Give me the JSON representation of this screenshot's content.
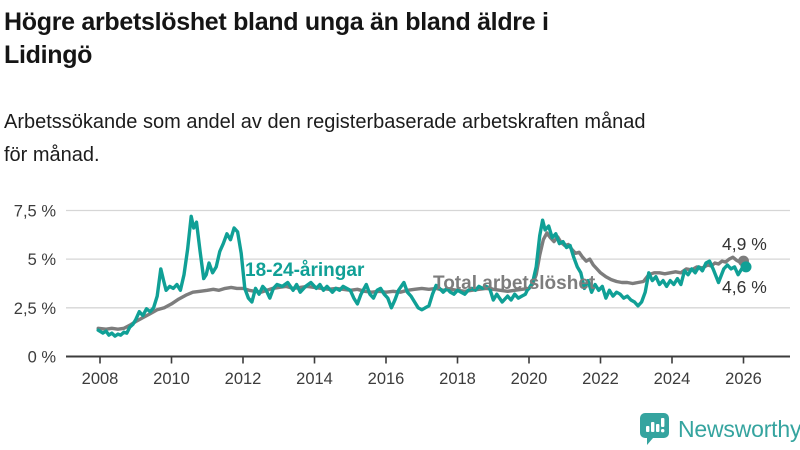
{
  "chart_data": {
    "type": "line",
    "title_lines": [
      "Högre arbetslöshet bland unga än bland äldre i",
      "Lidingö"
    ],
    "subtitle_lines": [
      "Arbetssökande som andel av den registerbaserade arbetskraften månad",
      "för månad."
    ],
    "x_axis": {
      "tick_values": [
        2008,
        2010,
        2012,
        2014,
        2016,
        2018,
        2020,
        2022,
        2024,
        2026
      ],
      "tick_labels": [
        "2008",
        "2010",
        "2012",
        "2014",
        "2016",
        "2018",
        "2020",
        "2022",
        "2024",
        "2026"
      ],
      "range": [
        2007.9,
        2027.3
      ]
    },
    "y_axis": {
      "tick_values": [
        7.5,
        5,
        2.5,
        0
      ],
      "tick_labels": [
        "7,5 %",
        "5 %",
        "2,5 %",
        "0 %"
      ],
      "unit": "%",
      "range": [
        0,
        7.8
      ],
      "gridlines": true
    },
    "legend_position": "inline-labels-on-lines",
    "series": [
      {
        "name": "Total arbetslöshet",
        "color": "#7d7d7d",
        "end_value": 4.9,
        "end_label": "4,9 %",
        "points": [
          [
            2007.95,
            1.45
          ],
          [
            2008.17,
            1.4
          ],
          [
            2008.33,
            1.45
          ],
          [
            2008.5,
            1.4
          ],
          [
            2008.67,
            1.45
          ],
          [
            2008.83,
            1.6
          ],
          [
            2009.0,
            1.8
          ],
          [
            2009.2,
            2.0
          ],
          [
            2009.4,
            2.2
          ],
          [
            2009.6,
            2.4
          ],
          [
            2009.8,
            2.5
          ],
          [
            2010.0,
            2.7
          ],
          [
            2010.2,
            2.95
          ],
          [
            2010.4,
            3.15
          ],
          [
            2010.6,
            3.3
          ],
          [
            2010.8,
            3.35
          ],
          [
            2011.0,
            3.4
          ],
          [
            2011.17,
            3.45
          ],
          [
            2011.33,
            3.4
          ],
          [
            2011.5,
            3.5
          ],
          [
            2011.67,
            3.55
          ],
          [
            2011.83,
            3.5
          ],
          [
            2012.0,
            3.5
          ],
          [
            2012.17,
            3.4
          ],
          [
            2012.33,
            3.35
          ],
          [
            2012.5,
            3.3
          ],
          [
            2012.67,
            3.4
          ],
          [
            2012.83,
            3.5
          ],
          [
            2013.0,
            3.55
          ],
          [
            2013.2,
            3.6
          ],
          [
            2013.4,
            3.5
          ],
          [
            2013.6,
            3.55
          ],
          [
            2013.8,
            3.6
          ],
          [
            2014.0,
            3.55
          ],
          [
            2014.2,
            3.5
          ],
          [
            2014.4,
            3.45
          ],
          [
            2014.6,
            3.5
          ],
          [
            2014.8,
            3.45
          ],
          [
            2015.0,
            3.4
          ],
          [
            2015.2,
            3.45
          ],
          [
            2015.4,
            3.35
          ],
          [
            2015.6,
            3.3
          ],
          [
            2015.8,
            3.35
          ],
          [
            2016.0,
            3.3
          ],
          [
            2016.2,
            3.35
          ],
          [
            2016.4,
            3.3
          ],
          [
            2016.6,
            3.4
          ],
          [
            2016.8,
            3.45
          ],
          [
            2017.0,
            3.5
          ],
          [
            2017.2,
            3.45
          ],
          [
            2017.4,
            3.5
          ],
          [
            2017.6,
            3.4
          ],
          [
            2017.8,
            3.45
          ],
          [
            2018.0,
            3.4
          ],
          [
            2018.2,
            3.35
          ],
          [
            2018.4,
            3.4
          ],
          [
            2018.6,
            3.45
          ],
          [
            2018.8,
            3.5
          ],
          [
            2019.0,
            3.45
          ],
          [
            2019.2,
            3.4
          ],
          [
            2019.4,
            3.35
          ],
          [
            2019.6,
            3.4
          ],
          [
            2019.8,
            3.45
          ],
          [
            2020.0,
            3.5
          ],
          [
            2020.1,
            3.7
          ],
          [
            2020.2,
            4.2
          ],
          [
            2020.3,
            5.2
          ],
          [
            2020.4,
            6.0
          ],
          [
            2020.5,
            6.35
          ],
          [
            2020.6,
            6.1
          ],
          [
            2020.7,
            5.9
          ],
          [
            2020.8,
            6.15
          ],
          [
            2020.9,
            5.85
          ],
          [
            2021.0,
            5.7
          ],
          [
            2021.1,
            5.75
          ],
          [
            2021.2,
            5.5
          ],
          [
            2021.3,
            5.3
          ],
          [
            2021.4,
            5.35
          ],
          [
            2021.5,
            5.1
          ],
          [
            2021.6,
            4.9
          ],
          [
            2021.7,
            5.0
          ],
          [
            2021.8,
            4.7
          ],
          [
            2021.9,
            4.5
          ],
          [
            2022.0,
            4.3
          ],
          [
            2022.15,
            4.1
          ],
          [
            2022.3,
            3.95
          ],
          [
            2022.45,
            3.85
          ],
          [
            2022.6,
            3.8
          ],
          [
            2022.75,
            3.8
          ],
          [
            2022.9,
            3.75
          ],
          [
            2023.05,
            3.8
          ],
          [
            2023.2,
            3.85
          ],
          [
            2023.35,
            4.2
          ],
          [
            2023.5,
            4.3
          ],
          [
            2023.65,
            4.3
          ],
          [
            2023.8,
            4.25
          ],
          [
            2023.95,
            4.3
          ],
          [
            2024.1,
            4.35
          ],
          [
            2024.25,
            4.3
          ],
          [
            2024.4,
            4.5
          ],
          [
            2024.55,
            4.45
          ],
          [
            2024.7,
            4.6
          ],
          [
            2024.85,
            4.55
          ],
          [
            2025.0,
            4.7
          ],
          [
            2025.1,
            4.65
          ],
          [
            2025.2,
            4.8
          ],
          [
            2025.3,
            4.75
          ],
          [
            2025.4,
            4.9
          ],
          [
            2025.5,
            4.85
          ],
          [
            2025.6,
            5.0
          ],
          [
            2025.7,
            5.1
          ],
          [
            2025.8,
            4.95
          ],
          [
            2025.9,
            4.85
          ],
          [
            2026.0,
            4.9
          ]
        ]
      },
      {
        "name": "18-24-åringar",
        "color": "#10a096",
        "end_value": 4.6,
        "end_label": "4,6 %",
        "points": [
          [
            2007.95,
            1.35
          ],
          [
            2008.08,
            1.2
          ],
          [
            2008.17,
            1.3
          ],
          [
            2008.25,
            1.1
          ],
          [
            2008.33,
            1.2
          ],
          [
            2008.42,
            1.05
          ],
          [
            2008.5,
            1.15
          ],
          [
            2008.58,
            1.1
          ],
          [
            2008.67,
            1.25
          ],
          [
            2008.75,
            1.2
          ],
          [
            2008.83,
            1.5
          ],
          [
            2008.92,
            1.65
          ],
          [
            2009.0,
            1.9
          ],
          [
            2009.1,
            2.3
          ],
          [
            2009.2,
            2.1
          ],
          [
            2009.3,
            2.45
          ],
          [
            2009.4,
            2.3
          ],
          [
            2009.5,
            2.5
          ],
          [
            2009.6,
            3.1
          ],
          [
            2009.7,
            4.5
          ],
          [
            2009.78,
            3.9
          ],
          [
            2009.85,
            3.4
          ],
          [
            2009.95,
            3.6
          ],
          [
            2010.05,
            3.5
          ],
          [
            2010.15,
            3.7
          ],
          [
            2010.25,
            3.4
          ],
          [
            2010.35,
            4.2
          ],
          [
            2010.45,
            5.5
          ],
          [
            2010.55,
            7.2
          ],
          [
            2010.62,
            6.6
          ],
          [
            2010.7,
            6.9
          ],
          [
            2010.8,
            5.4
          ],
          [
            2010.9,
            4.0
          ],
          [
            2010.97,
            4.2
          ],
          [
            2011.05,
            4.8
          ],
          [
            2011.15,
            4.3
          ],
          [
            2011.25,
            4.6
          ],
          [
            2011.35,
            5.4
          ],
          [
            2011.45,
            5.8
          ],
          [
            2011.55,
            6.3
          ],
          [
            2011.65,
            6.0
          ],
          [
            2011.75,
            6.6
          ],
          [
            2011.85,
            6.4
          ],
          [
            2011.95,
            5.3
          ],
          [
            2012.05,
            3.5
          ],
          [
            2012.15,
            3.0
          ],
          [
            2012.25,
            2.8
          ],
          [
            2012.35,
            3.5
          ],
          [
            2012.45,
            3.2
          ],
          [
            2012.55,
            3.6
          ],
          [
            2012.65,
            3.4
          ],
          [
            2012.75,
            3.0
          ],
          [
            2012.85,
            3.5
          ],
          [
            2012.95,
            3.7
          ],
          [
            2013.1,
            3.6
          ],
          [
            2013.25,
            3.8
          ],
          [
            2013.4,
            3.4
          ],
          [
            2013.5,
            3.7
          ],
          [
            2013.6,
            3.3
          ],
          [
            2013.75,
            3.6
          ],
          [
            2013.9,
            3.8
          ],
          [
            2014.05,
            3.5
          ],
          [
            2014.15,
            3.7
          ],
          [
            2014.25,
            3.4
          ],
          [
            2014.35,
            3.6
          ],
          [
            2014.5,
            3.3
          ],
          [
            2014.6,
            3.5
          ],
          [
            2014.7,
            3.4
          ],
          [
            2014.8,
            3.6
          ],
          [
            2014.9,
            3.5
          ],
          [
            2015.0,
            3.4
          ],
          [
            2015.1,
            3.0
          ],
          [
            2015.2,
            2.7
          ],
          [
            2015.3,
            3.2
          ],
          [
            2015.45,
            3.7
          ],
          [
            2015.55,
            3.2
          ],
          [
            2015.65,
            3.0
          ],
          [
            2015.75,
            3.4
          ],
          [
            2015.85,
            3.5
          ],
          [
            2015.95,
            3.2
          ],
          [
            2016.05,
            3.0
          ],
          [
            2016.15,
            2.5
          ],
          [
            2016.25,
            2.9
          ],
          [
            2016.35,
            3.4
          ],
          [
            2016.5,
            3.8
          ],
          [
            2016.6,
            3.3
          ],
          [
            2016.7,
            3.1
          ],
          [
            2016.8,
            2.8
          ],
          [
            2016.9,
            2.5
          ],
          [
            2017.0,
            2.4
          ],
          [
            2017.1,
            2.5
          ],
          [
            2017.2,
            2.6
          ],
          [
            2017.3,
            3.2
          ],
          [
            2017.4,
            3.65
          ],
          [
            2017.5,
            3.5
          ],
          [
            2017.6,
            3.3
          ],
          [
            2017.7,
            3.5
          ],
          [
            2017.8,
            3.3
          ],
          [
            2017.9,
            3.2
          ],
          [
            2018.0,
            3.4
          ],
          [
            2018.1,
            3.3
          ],
          [
            2018.2,
            3.2
          ],
          [
            2018.3,
            3.4
          ],
          [
            2018.4,
            3.5
          ],
          [
            2018.5,
            3.4
          ],
          [
            2018.6,
            3.6
          ],
          [
            2018.7,
            3.5
          ],
          [
            2018.8,
            3.6
          ],
          [
            2018.9,
            3.5
          ],
          [
            2019.0,
            2.9
          ],
          [
            2019.1,
            3.2
          ],
          [
            2019.25,
            2.8
          ],
          [
            2019.4,
            3.1
          ],
          [
            2019.5,
            2.9
          ],
          [
            2019.6,
            3.2
          ],
          [
            2019.7,
            3.0
          ],
          [
            2019.8,
            3.1
          ],
          [
            2019.9,
            3.2
          ],
          [
            2019.95,
            3.4
          ],
          [
            2020.0,
            3.5
          ],
          [
            2020.1,
            3.8
          ],
          [
            2020.2,
            4.6
          ],
          [
            2020.3,
            6.2
          ],
          [
            2020.38,
            7.0
          ],
          [
            2020.45,
            6.5
          ],
          [
            2020.55,
            6.7
          ],
          [
            2020.65,
            6.1
          ],
          [
            2020.75,
            6.3
          ],
          [
            2020.85,
            5.8
          ],
          [
            2020.95,
            5.9
          ],
          [
            2021.05,
            5.6
          ],
          [
            2021.15,
            5.7
          ],
          [
            2021.25,
            5.1
          ],
          [
            2021.35,
            4.6
          ],
          [
            2021.45,
            4.3
          ],
          [
            2021.55,
            3.5
          ],
          [
            2021.65,
            3.9
          ],
          [
            2021.75,
            3.3
          ],
          [
            2021.85,
            3.7
          ],
          [
            2021.95,
            3.4
          ],
          [
            2022.05,
            3.6
          ],
          [
            2022.15,
            3.0
          ],
          [
            2022.25,
            3.4
          ],
          [
            2022.35,
            3.1
          ],
          [
            2022.45,
            3.3
          ],
          [
            2022.55,
            3.2
          ],
          [
            2022.65,
            3.0
          ],
          [
            2022.75,
            3.1
          ],
          [
            2022.85,
            2.9
          ],
          [
            2022.95,
            2.8
          ],
          [
            2023.05,
            2.6
          ],
          [
            2023.15,
            2.8
          ],
          [
            2023.25,
            3.3
          ],
          [
            2023.35,
            4.3
          ],
          [
            2023.45,
            3.9
          ],
          [
            2023.55,
            4.1
          ],
          [
            2023.65,
            3.7
          ],
          [
            2023.75,
            3.9
          ],
          [
            2023.85,
            3.6
          ],
          [
            2023.95,
            3.9
          ],
          [
            2024.05,
            3.7
          ],
          [
            2024.15,
            4.0
          ],
          [
            2024.25,
            3.7
          ],
          [
            2024.35,
            4.4
          ],
          [
            2024.45,
            4.2
          ],
          [
            2024.55,
            4.5
          ],
          [
            2024.65,
            4.3
          ],
          [
            2024.75,
            4.6
          ],
          [
            2024.85,
            4.4
          ],
          [
            2024.95,
            4.8
          ],
          [
            2025.05,
            4.9
          ],
          [
            2025.15,
            4.5
          ],
          [
            2025.3,
            3.8
          ],
          [
            2025.45,
            4.5
          ],
          [
            2025.55,
            4.7
          ],
          [
            2025.65,
            4.5
          ],
          [
            2025.75,
            4.6
          ],
          [
            2025.85,
            4.2
          ],
          [
            2025.95,
            4.5
          ],
          [
            2026.07,
            4.6
          ]
        ]
      }
    ]
  },
  "logo": {
    "text": "Newsworthy",
    "color": "#35a49f"
  },
  "colors": {
    "accent_teal": "#10a096",
    "line_gray": "#7d7d7d",
    "grid": "#d6d6d6",
    "axis": "#3c3c3c",
    "title_text": "#151515"
  }
}
